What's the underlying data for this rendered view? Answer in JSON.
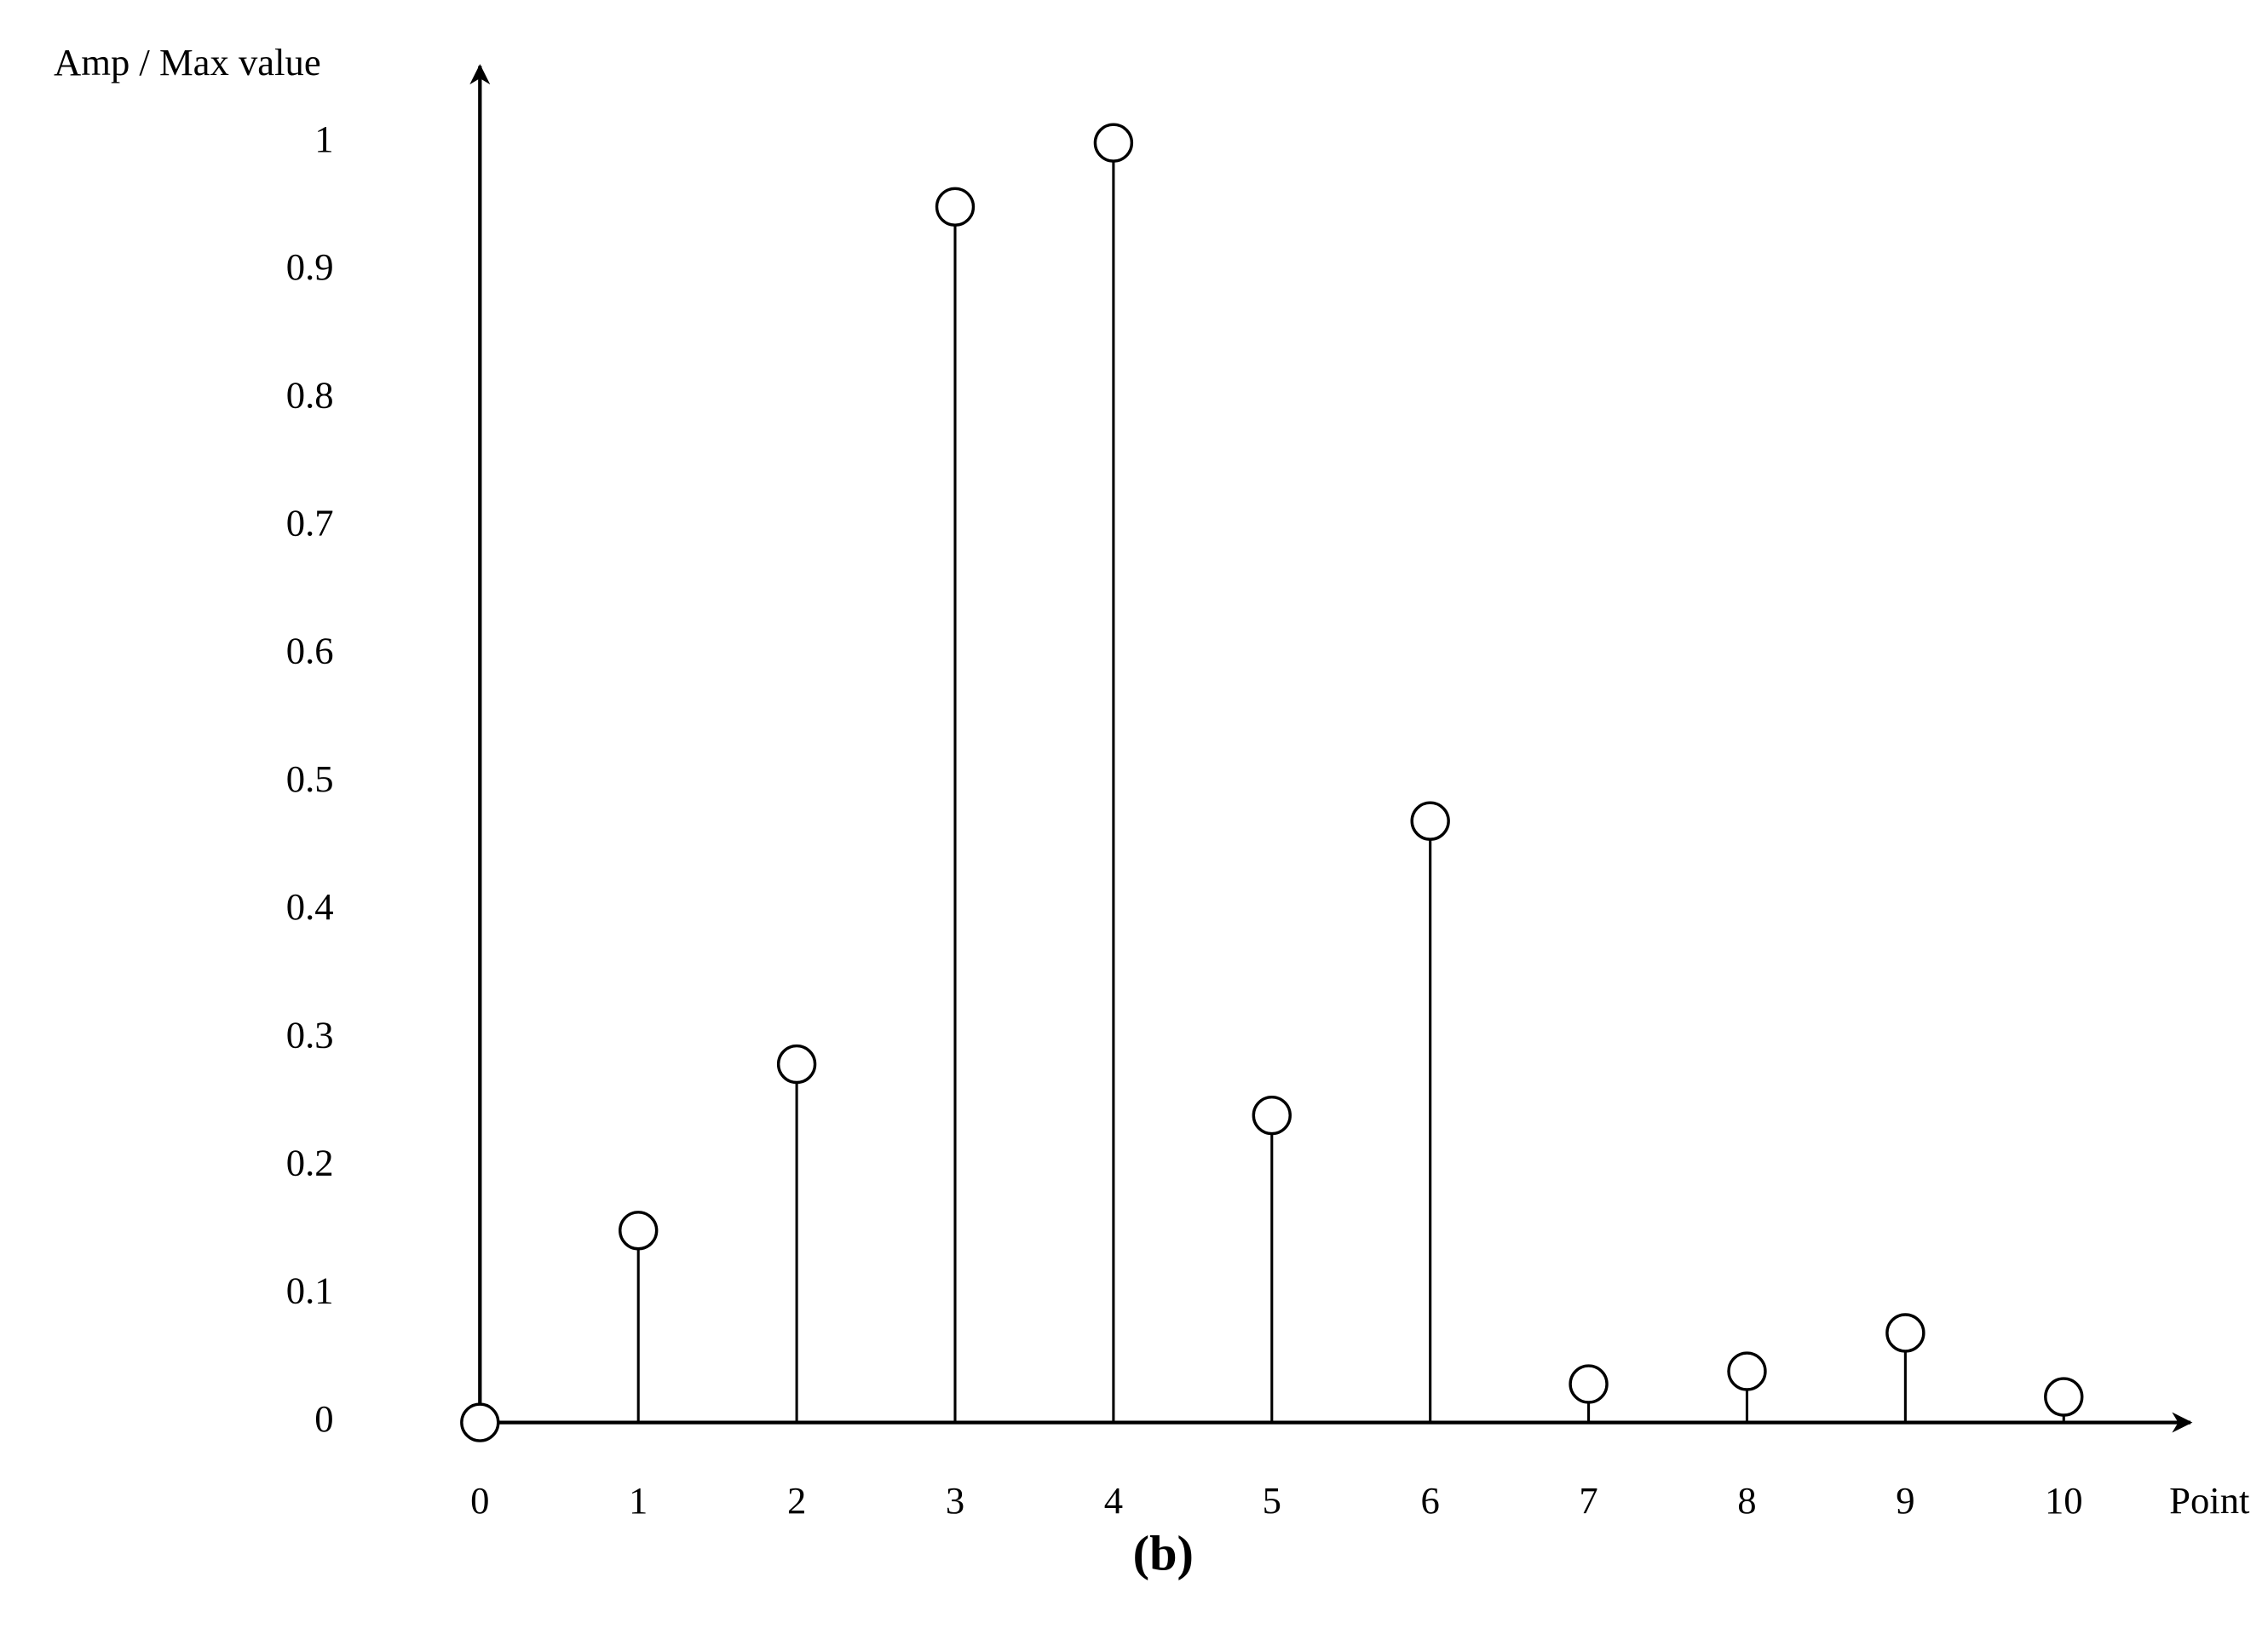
{
  "chart_data": {
    "type": "stem",
    "ylabel": "Amp / Max value",
    "xlabel": "Point",
    "caption": "(b)",
    "x": [
      0,
      1,
      2,
      3,
      4,
      5,
      6,
      7,
      8,
      9,
      10
    ],
    "values": [
      0,
      0.15,
      0.28,
      0.95,
      1.0,
      0.24,
      0.47,
      0.03,
      0.04,
      0.07,
      0.02
    ],
    "color": "#000000",
    "xlim": [
      0,
      10.8
    ],
    "ylim": [
      0,
      1.06
    ],
    "xticks": [
      0,
      1,
      2,
      3,
      4,
      5,
      6,
      7,
      8,
      9,
      10
    ],
    "yticks": [
      0,
      0.1,
      0.2,
      0.3,
      0.4,
      0.5,
      0.6,
      0.7,
      0.8,
      0.9,
      1
    ],
    "grid": false
  }
}
